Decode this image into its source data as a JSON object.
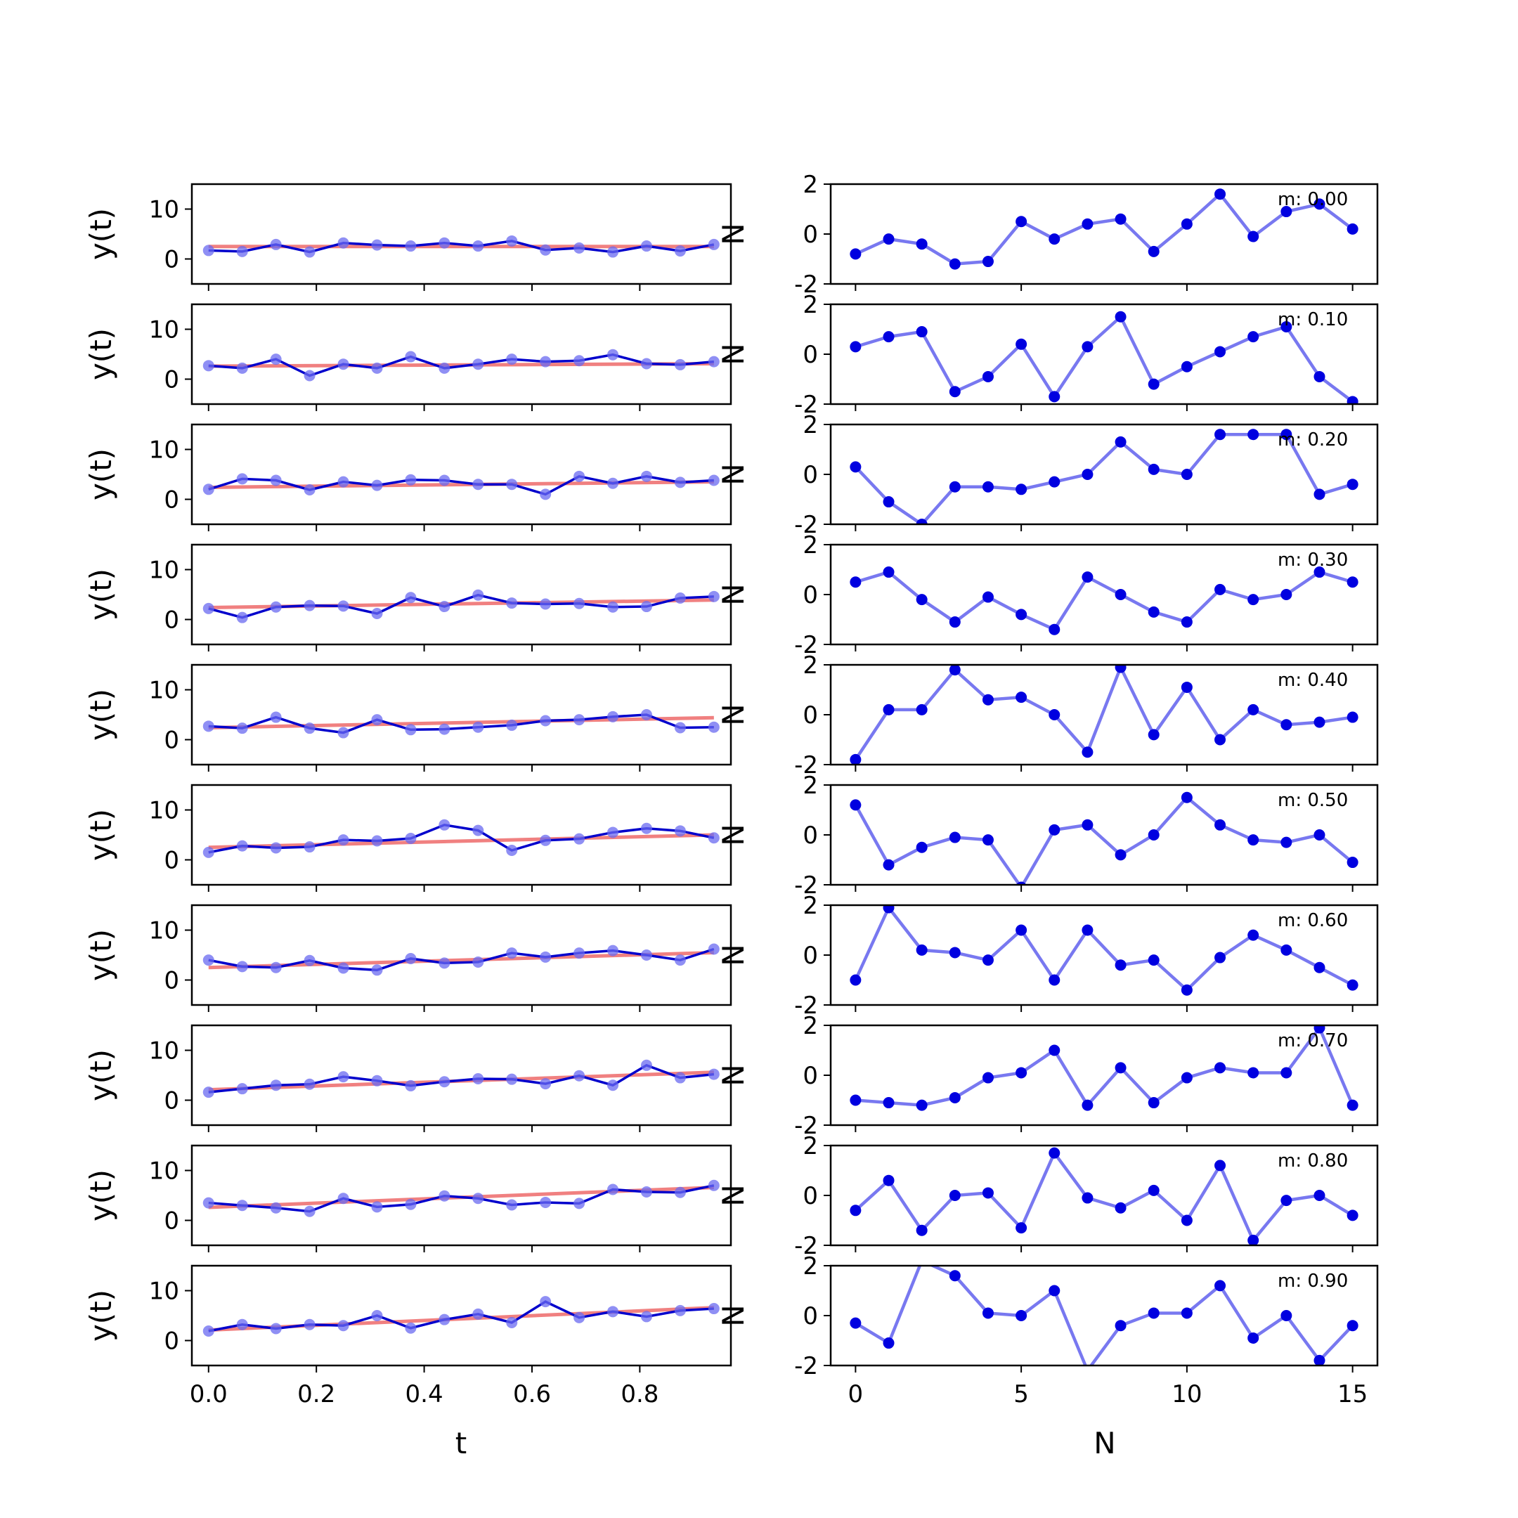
{
  "chart_data": {
    "type": "line",
    "title": "",
    "left_panels": {
      "xlabel": "t",
      "ylabel": "y(t)",
      "ylim": [
        -5,
        15
      ],
      "yticks": [
        0,
        10
      ],
      "xlim": [
        -0.031,
        0.969
      ],
      "xticks": [
        "0.0",
        "0.2",
        "0.4",
        "0.6",
        "0.8"
      ],
      "x": [
        0.0,
        0.0625,
        0.125,
        0.1875,
        0.25,
        0.3125,
        0.375,
        0.4375,
        0.5,
        0.5625,
        0.625,
        0.6875,
        0.75,
        0.8125,
        0.875,
        0.9375
      ],
      "fit_color": "#f08080",
      "line_color": "#0000cc",
      "marker_color": "#6a6af0"
    },
    "right_panels": {
      "xlabel": "N",
      "ylabel": "N",
      "ylim": [
        -2,
        2
      ],
      "yticks": [
        "-2",
        "0",
        "2"
      ],
      "xlim": [
        -0.75,
        15.75
      ],
      "xticks": [
        "0",
        "5",
        "10",
        "15"
      ],
      "x": [
        0,
        1,
        2,
        3,
        4,
        5,
        6,
        7,
        8,
        9,
        10,
        11,
        12,
        13,
        14,
        15
      ],
      "line_color": "#7878f0",
      "marker_color": "#0000e0"
    },
    "rows": [
      {
        "label": "m: 0.00",
        "y": [
          1.7,
          1.5,
          2.9,
          1.4,
          3.2,
          2.8,
          2.6,
          3.2,
          2.6,
          3.6,
          1.8,
          2.2,
          1.4,
          2.6,
          1.6,
          2.9
        ],
        "fit": [
          2.5,
          2.5
        ],
        "residual": [
          -0.8,
          -0.2,
          -0.4,
          -1.2,
          -1.1,
          0.5,
          -0.2,
          0.4,
          0.6,
          -0.7,
          0.4,
          1.6,
          -0.1,
          0.9,
          1.2,
          0.2
        ]
      },
      {
        "label": "m: 0.10",
        "y": [
          2.7,
          2.2,
          4.0,
          0.7,
          3.0,
          2.2,
          4.5,
          2.2,
          3.0,
          4.0,
          3.5,
          3.7,
          4.9,
          3.1,
          2.9,
          3.5
        ],
        "fit": [
          2.6,
          3.1
        ],
        "residual": [
          0.3,
          0.7,
          0.9,
          -1.5,
          -0.9,
          0.4,
          -1.7,
          0.3,
          1.5,
          -1.2,
          -0.5,
          0.1,
          0.7,
          1.1,
          -0.9,
          -1.9
        ]
      },
      {
        "label": "m: 0.20",
        "y": [
          2.0,
          4.1,
          3.8,
          1.9,
          3.5,
          2.8,
          3.9,
          3.8,
          3.0,
          3.0,
          1.0,
          4.6,
          3.2,
          4.6,
          3.4,
          3.8
        ],
        "fit": [
          2.4,
          3.5
        ],
        "residual": [
          0.3,
          -1.1,
          -2.0,
          -0.5,
          -0.5,
          -0.6,
          -0.3,
          0.0,
          1.3,
          0.2,
          0.0,
          1.6,
          1.6,
          1.6,
          -0.8,
          -0.4
        ]
      },
      {
        "label": "m: 0.30",
        "y": [
          2.2,
          0.4,
          2.5,
          2.8,
          2.7,
          1.2,
          4.4,
          2.6,
          4.9,
          3.3,
          3.1,
          3.2,
          2.5,
          2.6,
          4.3,
          4.6
        ],
        "fit": [
          2.4,
          3.9
        ],
        "residual": [
          0.5,
          0.9,
          -0.2,
          -1.1,
          -0.1,
          -0.8,
          -1.4,
          0.7,
          0.0,
          -0.7,
          -1.1,
          0.2,
          -0.2,
          0.0,
          0.9,
          0.5
        ]
      },
      {
        "label": "m: 0.40",
        "y": [
          2.7,
          2.3,
          4.5,
          2.3,
          1.4,
          4.0,
          2.0,
          2.1,
          2.5,
          2.9,
          3.8,
          4.0,
          4.6,
          5.0,
          2.4,
          2.5
        ],
        "fit": [
          2.4,
          4.4
        ],
        "residual": [
          -1.8,
          0.2,
          0.2,
          1.8,
          0.6,
          0.7,
          0.0,
          -1.5,
          1.9,
          -0.8,
          1.1,
          -1.0,
          0.2,
          -0.4,
          -0.3,
          -0.1
        ]
      },
      {
        "label": "m: 0.50",
        "y": [
          1.5,
          2.8,
          2.4,
          2.6,
          4.0,
          3.8,
          4.3,
          7.0,
          5.9,
          1.9,
          3.9,
          4.2,
          5.5,
          6.3,
          5.8,
          4.4
        ],
        "fit": [
          2.5,
          5.0
        ],
        "residual": [
          1.2,
          -1.2,
          -0.5,
          -0.1,
          -0.2,
          -2.1,
          0.2,
          0.4,
          -0.8,
          0.0,
          1.5,
          0.4,
          -0.2,
          -0.3,
          0.0,
          -1.1
        ]
      },
      {
        "label": "m: 0.60",
        "y": [
          4.0,
          2.7,
          2.5,
          3.9,
          2.4,
          2.0,
          4.3,
          3.4,
          3.6,
          5.4,
          4.6,
          5.4,
          5.9,
          5.0,
          4.0,
          6.2
        ],
        "fit": [
          2.5,
          5.5
        ],
        "residual": [
          -1.0,
          1.9,
          0.2,
          0.1,
          -0.2,
          1.0,
          -1.0,
          1.0,
          -0.4,
          -0.2,
          -1.4,
          -0.1,
          0.8,
          0.2,
          -0.5,
          -1.2
        ]
      },
      {
        "label": "m: 0.70",
        "y": [
          1.6,
          2.3,
          3.0,
          3.2,
          4.7,
          3.9,
          2.9,
          3.7,
          4.3,
          4.2,
          3.3,
          4.9,
          3.0,
          7.0,
          4.5,
          5.2
        ],
        "fit": [
          2.1,
          5.6
        ],
        "residual": [
          -1.0,
          -1.1,
          -1.2,
          -0.9,
          -0.1,
          0.1,
          1.0,
          -1.2,
          0.3,
          -1.1,
          -0.1,
          0.3,
          0.1,
          0.1,
          1.9,
          -1.2
        ]
      },
      {
        "label": "m: 0.80",
        "y": [
          3.5,
          3.0,
          2.5,
          1.8,
          4.4,
          2.7,
          3.2,
          4.9,
          4.4,
          3.1,
          3.6,
          3.4,
          6.2,
          5.7,
          5.6,
          7.0
        ],
        "fit": [
          2.6,
          6.6
        ],
        "residual": [
          -0.6,
          0.6,
          -1.4,
          0.0,
          0.1,
          -1.3,
          1.7,
          -0.1,
          -0.5,
          0.2,
          -1.0,
          1.2,
          -1.8,
          -0.2,
          0.0,
          -0.8
        ]
      },
      {
        "label": "m: 0.90",
        "y": [
          1.9,
          3.2,
          2.4,
          3.2,
          3.0,
          5.0,
          2.5,
          4.2,
          5.3,
          3.6,
          7.8,
          4.6,
          5.8,
          4.8,
          6.0,
          6.4
        ],
        "fit": [
          2.1,
          6.6
        ],
        "residual": [
          -0.3,
          -1.1,
          2.2,
          1.6,
          0.1,
          0.0,
          1.0,
          -2.2,
          -0.4,
          0.1,
          0.1,
          1.2,
          -0.9,
          0.0,
          -1.8,
          -0.4
        ]
      }
    ]
  }
}
